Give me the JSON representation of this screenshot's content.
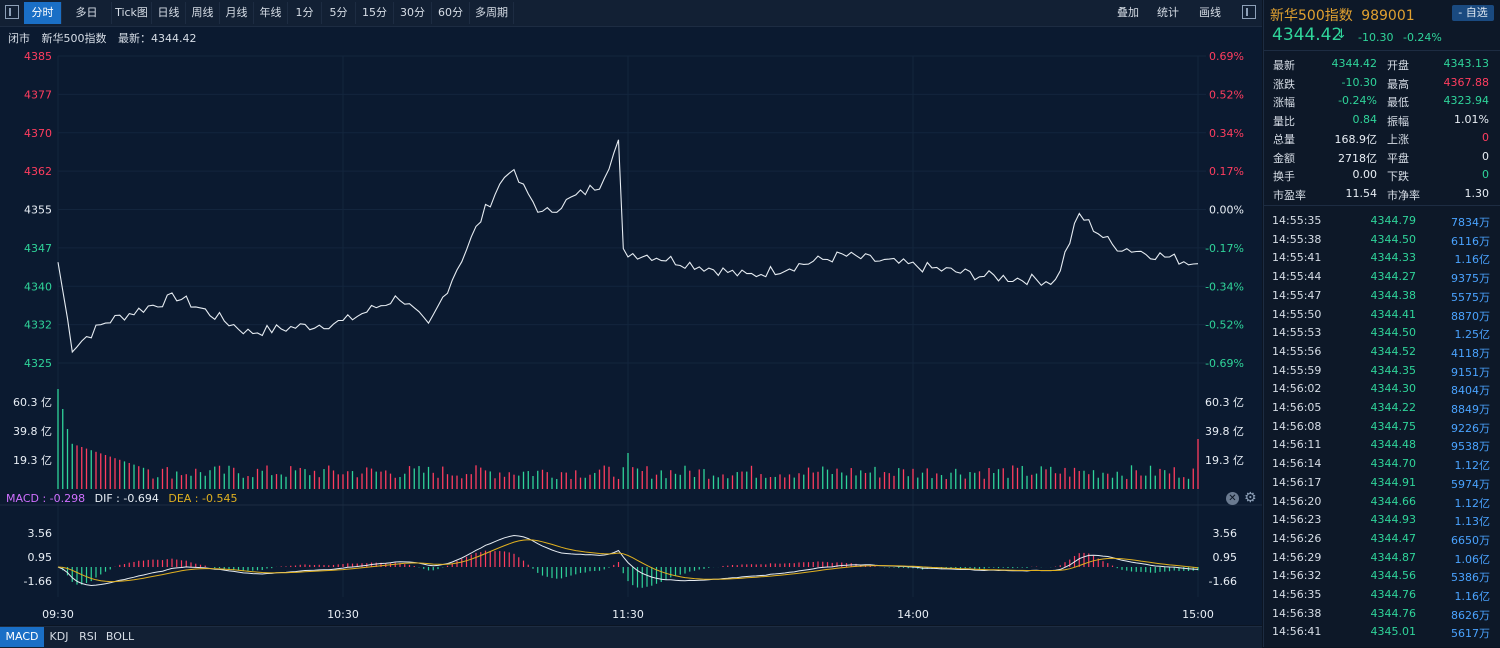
{
  "toolbar": {
    "buttons": [
      "分时",
      "多日",
      "Tick图",
      "日线",
      "周线",
      "月线",
      "年线",
      "1分",
      "5分",
      "15分",
      "30分",
      "60分",
      "多周期"
    ],
    "active": "分时",
    "right_buttons": [
      "叠加",
      "统计",
      "画线"
    ]
  },
  "subtitle": {
    "state": "闭市",
    "name": "新华500指数",
    "last_label": "最新：4344.42"
  },
  "price_axis": {
    "left": [
      "4385",
      "4377",
      "4370",
      "4362",
      "4355",
      "4347",
      "4340",
      "4332",
      "4325"
    ],
    "right": [
      "0.69%",
      "0.52%",
      "0.34%",
      "0.17%",
      "0.00%",
      "-0.17%",
      "-0.34%",
      "-0.52%",
      "-0.69%"
    ],
    "colors": [
      "red",
      "red",
      "red",
      "red",
      "white",
      "green",
      "green",
      "green",
      "green"
    ]
  },
  "volume_axis": {
    "labels": [
      "60.3 亿",
      "39.8 亿",
      "19.3 亿"
    ]
  },
  "macd": {
    "title": "MACD : -0.298",
    "dif": "DIF : -0.694",
    "dea": "DEA : -0.545",
    "axis": [
      "3.56",
      "0.95",
      "-1.66"
    ]
  },
  "time_axis": [
    "09:30",
    "10:30",
    "11:30",
    "14:00",
    "15:00"
  ],
  "bottom_tabs": [
    "MACD",
    "KDJ",
    "RSI",
    "BOLL"
  ],
  "stock": {
    "name": "新华500指数",
    "code": "989001",
    "watch_label": "- 自选",
    "price": "4344.42",
    "arrow": "↓",
    "change": "-10.30",
    "change_pct": "-0.24%"
  },
  "quote": [
    {
      "l1": "最新",
      "v1": "4344.42",
      "c1": "green",
      "l2": "开盘",
      "v2": "4343.13",
      "c2": "green"
    },
    {
      "l1": "涨跌",
      "v1": "-10.30",
      "c1": "green",
      "l2": "最高",
      "v2": "4367.88",
      "c2": "red"
    },
    {
      "l1": "涨幅",
      "v1": "-0.24%",
      "c1": "green",
      "l2": "最低",
      "v2": "4323.94",
      "c2": "green"
    },
    {
      "l1": "量比",
      "v1": "0.84",
      "c1": "green",
      "l2": "振幅",
      "v2": "1.01%",
      "c2": "white"
    },
    {
      "l1": "总量",
      "v1": "168.9亿",
      "c1": "white",
      "l2": "上涨",
      "v2": "0",
      "c2": "red"
    },
    {
      "l1": "金额",
      "v1": "2718亿",
      "c1": "white",
      "l2": "平盘",
      "v2": "0",
      "c2": "white"
    },
    {
      "l1": "换手",
      "v1": "0.00",
      "c1": "white",
      "l2": "下跌",
      "v2": "0",
      "c2": "green"
    },
    {
      "l1": "市盈率",
      "v1": "11.54",
      "c1": "white",
      "l2": "市净率",
      "v2": "1.30",
      "c2": "white"
    }
  ],
  "ticks": [
    {
      "t": "14:55:35",
      "p": "4344.79",
      "v": "7834万"
    },
    {
      "t": "14:55:38",
      "p": "4344.50",
      "v": "6116万"
    },
    {
      "t": "14:55:41",
      "p": "4344.33",
      "v": "1.16亿"
    },
    {
      "t": "14:55:44",
      "p": "4344.27",
      "v": "9375万"
    },
    {
      "t": "14:55:47",
      "p": "4344.38",
      "v": "5575万"
    },
    {
      "t": "14:55:50",
      "p": "4344.41",
      "v": "8870万"
    },
    {
      "t": "14:55:53",
      "p": "4344.50",
      "v": "1.25亿"
    },
    {
      "t": "14:55:56",
      "p": "4344.52",
      "v": "4118万"
    },
    {
      "t": "14:55:59",
      "p": "4344.35",
      "v": "9151万"
    },
    {
      "t": "14:56:02",
      "p": "4344.30",
      "v": "8404万"
    },
    {
      "t": "14:56:05",
      "p": "4344.22",
      "v": "8849万"
    },
    {
      "t": "14:56:08",
      "p": "4344.75",
      "v": "9226万"
    },
    {
      "t": "14:56:11",
      "p": "4344.48",
      "v": "9538万"
    },
    {
      "t": "14:56:14",
      "p": "4344.70",
      "v": "1.12亿"
    },
    {
      "t": "14:56:17",
      "p": "4344.91",
      "v": "5974万"
    },
    {
      "t": "14:56:20",
      "p": "4344.66",
      "v": "1.12亿"
    },
    {
      "t": "14:56:23",
      "p": "4344.93",
      "v": "1.13亿"
    },
    {
      "t": "14:56:26",
      "p": "4344.47",
      "v": "6650万"
    },
    {
      "t": "14:56:29",
      "p": "4344.87",
      "v": "1.06亿"
    },
    {
      "t": "14:56:32",
      "p": "4344.56",
      "v": "5386万"
    },
    {
      "t": "14:56:35",
      "p": "4344.76",
      "v": "1.16亿"
    },
    {
      "t": "14:56:38",
      "p": "4344.76",
      "v": "8626万"
    },
    {
      "t": "14:56:41",
      "p": "4345.01",
      "v": "5617万"
    }
  ],
  "colors": {
    "up": "#ff3d5f",
    "down": "#2fd49a",
    "accent": "#1a6fc6",
    "line": "#e6ecf2",
    "dea": "#e0b020",
    "macd_label": "#d070ff"
  },
  "chart_data": {
    "type": "line",
    "x_labels": [
      "09:30",
      "10:30",
      "11:30",
      "14:00",
      "15:00"
    ],
    "price_range": [
      4325,
      4385
    ],
    "price_keypoints": [
      {
        "x": "09:30",
        "y": 4344.7
      },
      {
        "x": "09:33",
        "y": 4328
      },
      {
        "x": "09:40",
        "y": 4333
      },
      {
        "x": "09:55",
        "y": 4338
      },
      {
        "x": "10:10",
        "y": 4331
      },
      {
        "x": "10:30",
        "y": 4333
      },
      {
        "x": "10:42",
        "y": 4338
      },
      {
        "x": "10:48",
        "y": 4332
      },
      {
        "x": "11:00",
        "y": 4355
      },
      {
        "x": "11:05",
        "y": 4363
      },
      {
        "x": "11:12",
        "y": 4354
      },
      {
        "x": "11:24",
        "y": 4360
      },
      {
        "x": "11:28",
        "y": 4367.9
      },
      {
        "x": "11:35",
        "y": 4355
      },
      {
        "x": "13:05",
        "y": 4346
      },
      {
        "x": "13:25",
        "y": 4342
      },
      {
        "x": "13:45",
        "y": 4346
      },
      {
        "x": "14:15",
        "y": 4342
      },
      {
        "x": "14:30",
        "y": 4341
      },
      {
        "x": "14:35",
        "y": 4354
      },
      {
        "x": "14:42",
        "y": 4348
      },
      {
        "x": "15:00",
        "y": 4344.4
      }
    ]
  }
}
